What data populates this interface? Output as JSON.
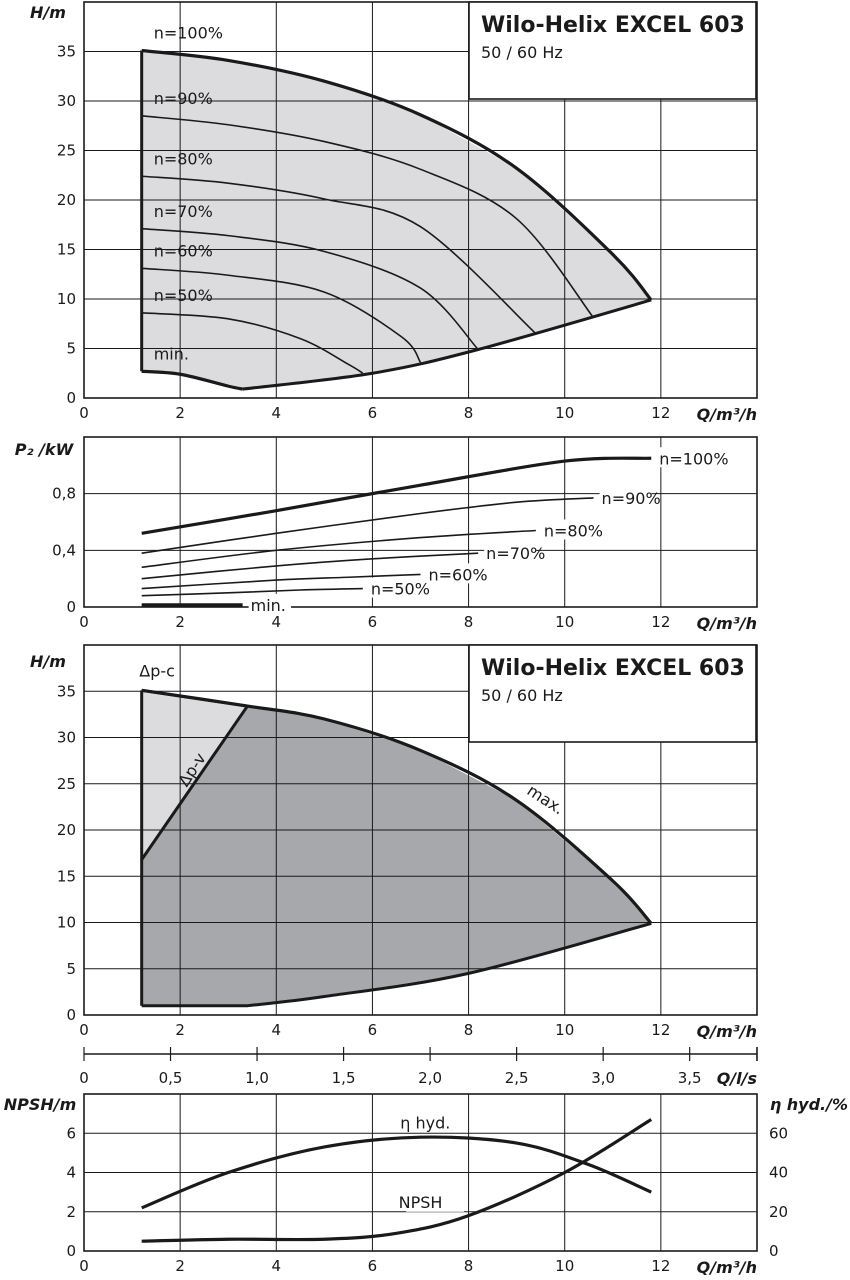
{
  "chart_data": [
    {
      "type": "area",
      "id": "h_speed",
      "title": "Wilo-Helix EXCEL 603",
      "subtitle": "50 / 60 Hz",
      "xlabel": "Q/m³/h",
      "ylabel": "H/m",
      "xlim": [
        0,
        14
      ],
      "ylim": [
        0,
        40
      ],
      "xticks": [
        0,
        2,
        4,
        6,
        8,
        10,
        12
      ],
      "xtick_labels": [
        "0",
        "2",
        "4",
        "6",
        "8",
        "10",
        "12"
      ],
      "yticks": [
        0,
        5,
        10,
        15,
        20,
        25,
        30,
        35
      ],
      "ytick_labels": [
        "0",
        "5",
        "10",
        "15",
        "20",
        "25",
        "30",
        "35"
      ],
      "grid": true,
      "series": [
        {
          "name": "n=100%",
          "x": [
            1.2,
            3,
            5,
            7,
            9,
            11,
            11.8
          ],
          "y": [
            35.1,
            34.1,
            32,
            28.6,
            23.2,
            14.5,
            9.9
          ]
        },
        {
          "name": "n=90%",
          "x": [
            1.2,
            3,
            5,
            7,
            9,
            10.6
          ],
          "y": [
            28.5,
            27.6,
            25.9,
            23.1,
            18.1,
            8.1
          ]
        },
        {
          "name": "n=80%",
          "x": [
            1.2,
            3,
            5,
            7,
            9.4
          ],
          "y": [
            22.4,
            21.7,
            20.1,
            17.3,
            6.5
          ]
        },
        {
          "name": "n=70%",
          "x": [
            1.2,
            3,
            5,
            7,
            8.2
          ],
          "y": [
            17.1,
            16.4,
            14.8,
            11.1,
            4.9
          ]
        },
        {
          "name": "n=60%",
          "x": [
            1.2,
            3,
            5,
            6.6,
            7.0
          ],
          "y": [
            13.1,
            12.4,
            10.7,
            6.2,
            3.6
          ]
        },
        {
          "name": "n=50%",
          "x": [
            1.2,
            3,
            4.5,
            5.5,
            5.8
          ],
          "y": [
            8.6,
            8.0,
            6.0,
            3.4,
            2.5
          ]
        },
        {
          "name": "min.",
          "x": [
            1.2,
            2.0,
            3.0,
            3.3
          ],
          "y": [
            2.7,
            2.4,
            1.2,
            0.9
          ]
        }
      ],
      "boundary_max": {
        "x": [
          1.2,
          3,
          5,
          7,
          9,
          11,
          11.8
        ],
        "y": [
          35.1,
          34.1,
          32,
          28.6,
          23.2,
          14.5,
          9.9
        ]
      },
      "boundary_min": {
        "x": [
          1.2,
          2.0,
          3.0,
          3.3,
          6,
          8.2,
          11.8
        ],
        "y": [
          2.7,
          2.4,
          1.2,
          0.9,
          2.5,
          4.9,
          9.9
        ]
      }
    },
    {
      "type": "line",
      "id": "p2",
      "xlabel": "Q/m³/h",
      "ylabel": "P₂ /kW",
      "xlim": [
        0,
        14
      ],
      "ylim": [
        0,
        1.2
      ],
      "xticks": [
        0,
        2,
        4,
        6,
        8,
        10,
        12
      ],
      "xtick_labels": [
        "0",
        "2",
        "4",
        "6",
        "8",
        "10",
        "12"
      ],
      "yticks": [
        0,
        0.4,
        0.8
      ],
      "ytick_labels": [
        "0",
        "0,4",
        "0,8"
      ],
      "grid": true,
      "series": [
        {
          "name": "n=100%",
          "x": [
            1.2,
            4,
            7,
            10,
            11.8
          ],
          "y": [
            0.52,
            0.68,
            0.86,
            1.03,
            1.05
          ]
        },
        {
          "name": "n=90%",
          "x": [
            1.2,
            4,
            7,
            9,
            10.6
          ],
          "y": [
            0.38,
            0.52,
            0.66,
            0.74,
            0.77
          ]
        },
        {
          "name": "n=80%",
          "x": [
            1.2,
            4,
            7,
            9.4
          ],
          "y": [
            0.28,
            0.4,
            0.49,
            0.54
          ]
        },
        {
          "name": "n=70%",
          "x": [
            1.2,
            4,
            6,
            8.2
          ],
          "y": [
            0.2,
            0.29,
            0.34,
            0.38
          ]
        },
        {
          "name": "n=60%",
          "x": [
            1.2,
            4,
            5.5,
            7.0
          ],
          "y": [
            0.13,
            0.19,
            0.21,
            0.23
          ]
        },
        {
          "name": "n=50%",
          "x": [
            1.2,
            3,
            4.5,
            5.8
          ],
          "y": [
            0.08,
            0.1,
            0.12,
            0.13
          ]
        },
        {
          "name": "min.",
          "x": [
            1.2,
            3.3
          ],
          "y": [
            0.015,
            0.015
          ]
        }
      ]
    },
    {
      "type": "area",
      "id": "h_modes",
      "title": "Wilo-Helix EXCEL 603",
      "subtitle": "50 / 60 Hz",
      "xlabel": "Q/m³/h",
      "ylabel": "H/m",
      "xlim": [
        0,
        14
      ],
      "ylim": [
        0,
        40
      ],
      "xticks": [
        0,
        2,
        4,
        6,
        8,
        10,
        12
      ],
      "xtick_labels": [
        "0",
        "2",
        "4",
        "6",
        "8",
        "10",
        "12"
      ],
      "yticks": [
        0,
        5,
        10,
        15,
        20,
        25,
        30,
        35
      ],
      "ytick_labels": [
        "0",
        "5",
        "10",
        "15",
        "20",
        "25",
        "30",
        "35"
      ],
      "grid": true,
      "series": [
        {
          "name": "max.",
          "x": [
            1.2,
            3.4,
            5,
            7,
            9,
            11,
            11.8
          ],
          "y": [
            35.1,
            33.4,
            32,
            28.6,
            23.2,
            14.5,
            9.9
          ]
        },
        {
          "name": "Δp-v",
          "x": [
            1.2,
            3.4
          ],
          "y": [
            16.8,
            33.4
          ]
        },
        {
          "name": "Δp-c",
          "x": [
            1.2,
            3.4
          ],
          "y": [
            35.1,
            33.4
          ]
        }
      ],
      "light_region": {
        "x": [
          1.2,
          1.2,
          3.4
        ],
        "y": [
          16.8,
          35.1,
          33.4
        ]
      },
      "dark_region": {
        "x": [
          1.2,
          1.2,
          3.4,
          5,
          7,
          9,
          11,
          11.8,
          8,
          5,
          3.4,
          1.2
        ],
        "y": [
          1,
          16.8,
          33.4,
          32,
          28.6,
          23.2,
          14.5,
          9.9,
          4.5,
          2.0,
          1,
          1
        ]
      }
    },
    {
      "type": "line",
      "id": "q_ls_axis",
      "xlabel": "Q/l/s",
      "xlim": [
        0,
        3.889
      ],
      "xticks": [
        0,
        0.5,
        1.0,
        1.5,
        2.0,
        2.5,
        3.0,
        3.5
      ],
      "xtick_labels": [
        "0",
        "0,5",
        "1,0",
        "1,5",
        "2,0",
        "2,5",
        "3,0",
        "3,5"
      ]
    },
    {
      "type": "line",
      "id": "npsh_eta",
      "xlabel": "Q/m³/h",
      "ylabel": "NPSH/m",
      "y2label": "η hyd./%",
      "xlim": [
        0,
        14
      ],
      "ylim": [
        0,
        8
      ],
      "y2lim": [
        0,
        80
      ],
      "xticks": [
        0,
        2,
        4,
        6,
        8,
        10,
        12
      ],
      "xtick_labels": [
        "0",
        "2",
        "4",
        "6",
        "8",
        "10",
        "12"
      ],
      "yticks": [
        0,
        2,
        4,
        6
      ],
      "ytick_labels": [
        "0",
        "2",
        "4",
        "6"
      ],
      "y2ticks": [
        0,
        20,
        40,
        60
      ],
      "y2tick_labels": [
        "0",
        "20",
        "40",
        "60"
      ],
      "grid": true,
      "series": [
        {
          "name": "η hyd.",
          "axis": "right",
          "x": [
            1.2,
            3,
            5,
            7,
            9,
            10.5,
            11.8
          ],
          "y": [
            22,
            40,
            53,
            58,
            55,
            44,
            30
          ]
        },
        {
          "name": "NPSH",
          "axis": "left",
          "x": [
            1.2,
            3,
            5,
            6.5,
            8,
            10,
            11.8
          ],
          "y": [
            0.5,
            0.6,
            0.6,
            0.9,
            1.8,
            4.0,
            6.7
          ]
        }
      ]
    }
  ]
}
